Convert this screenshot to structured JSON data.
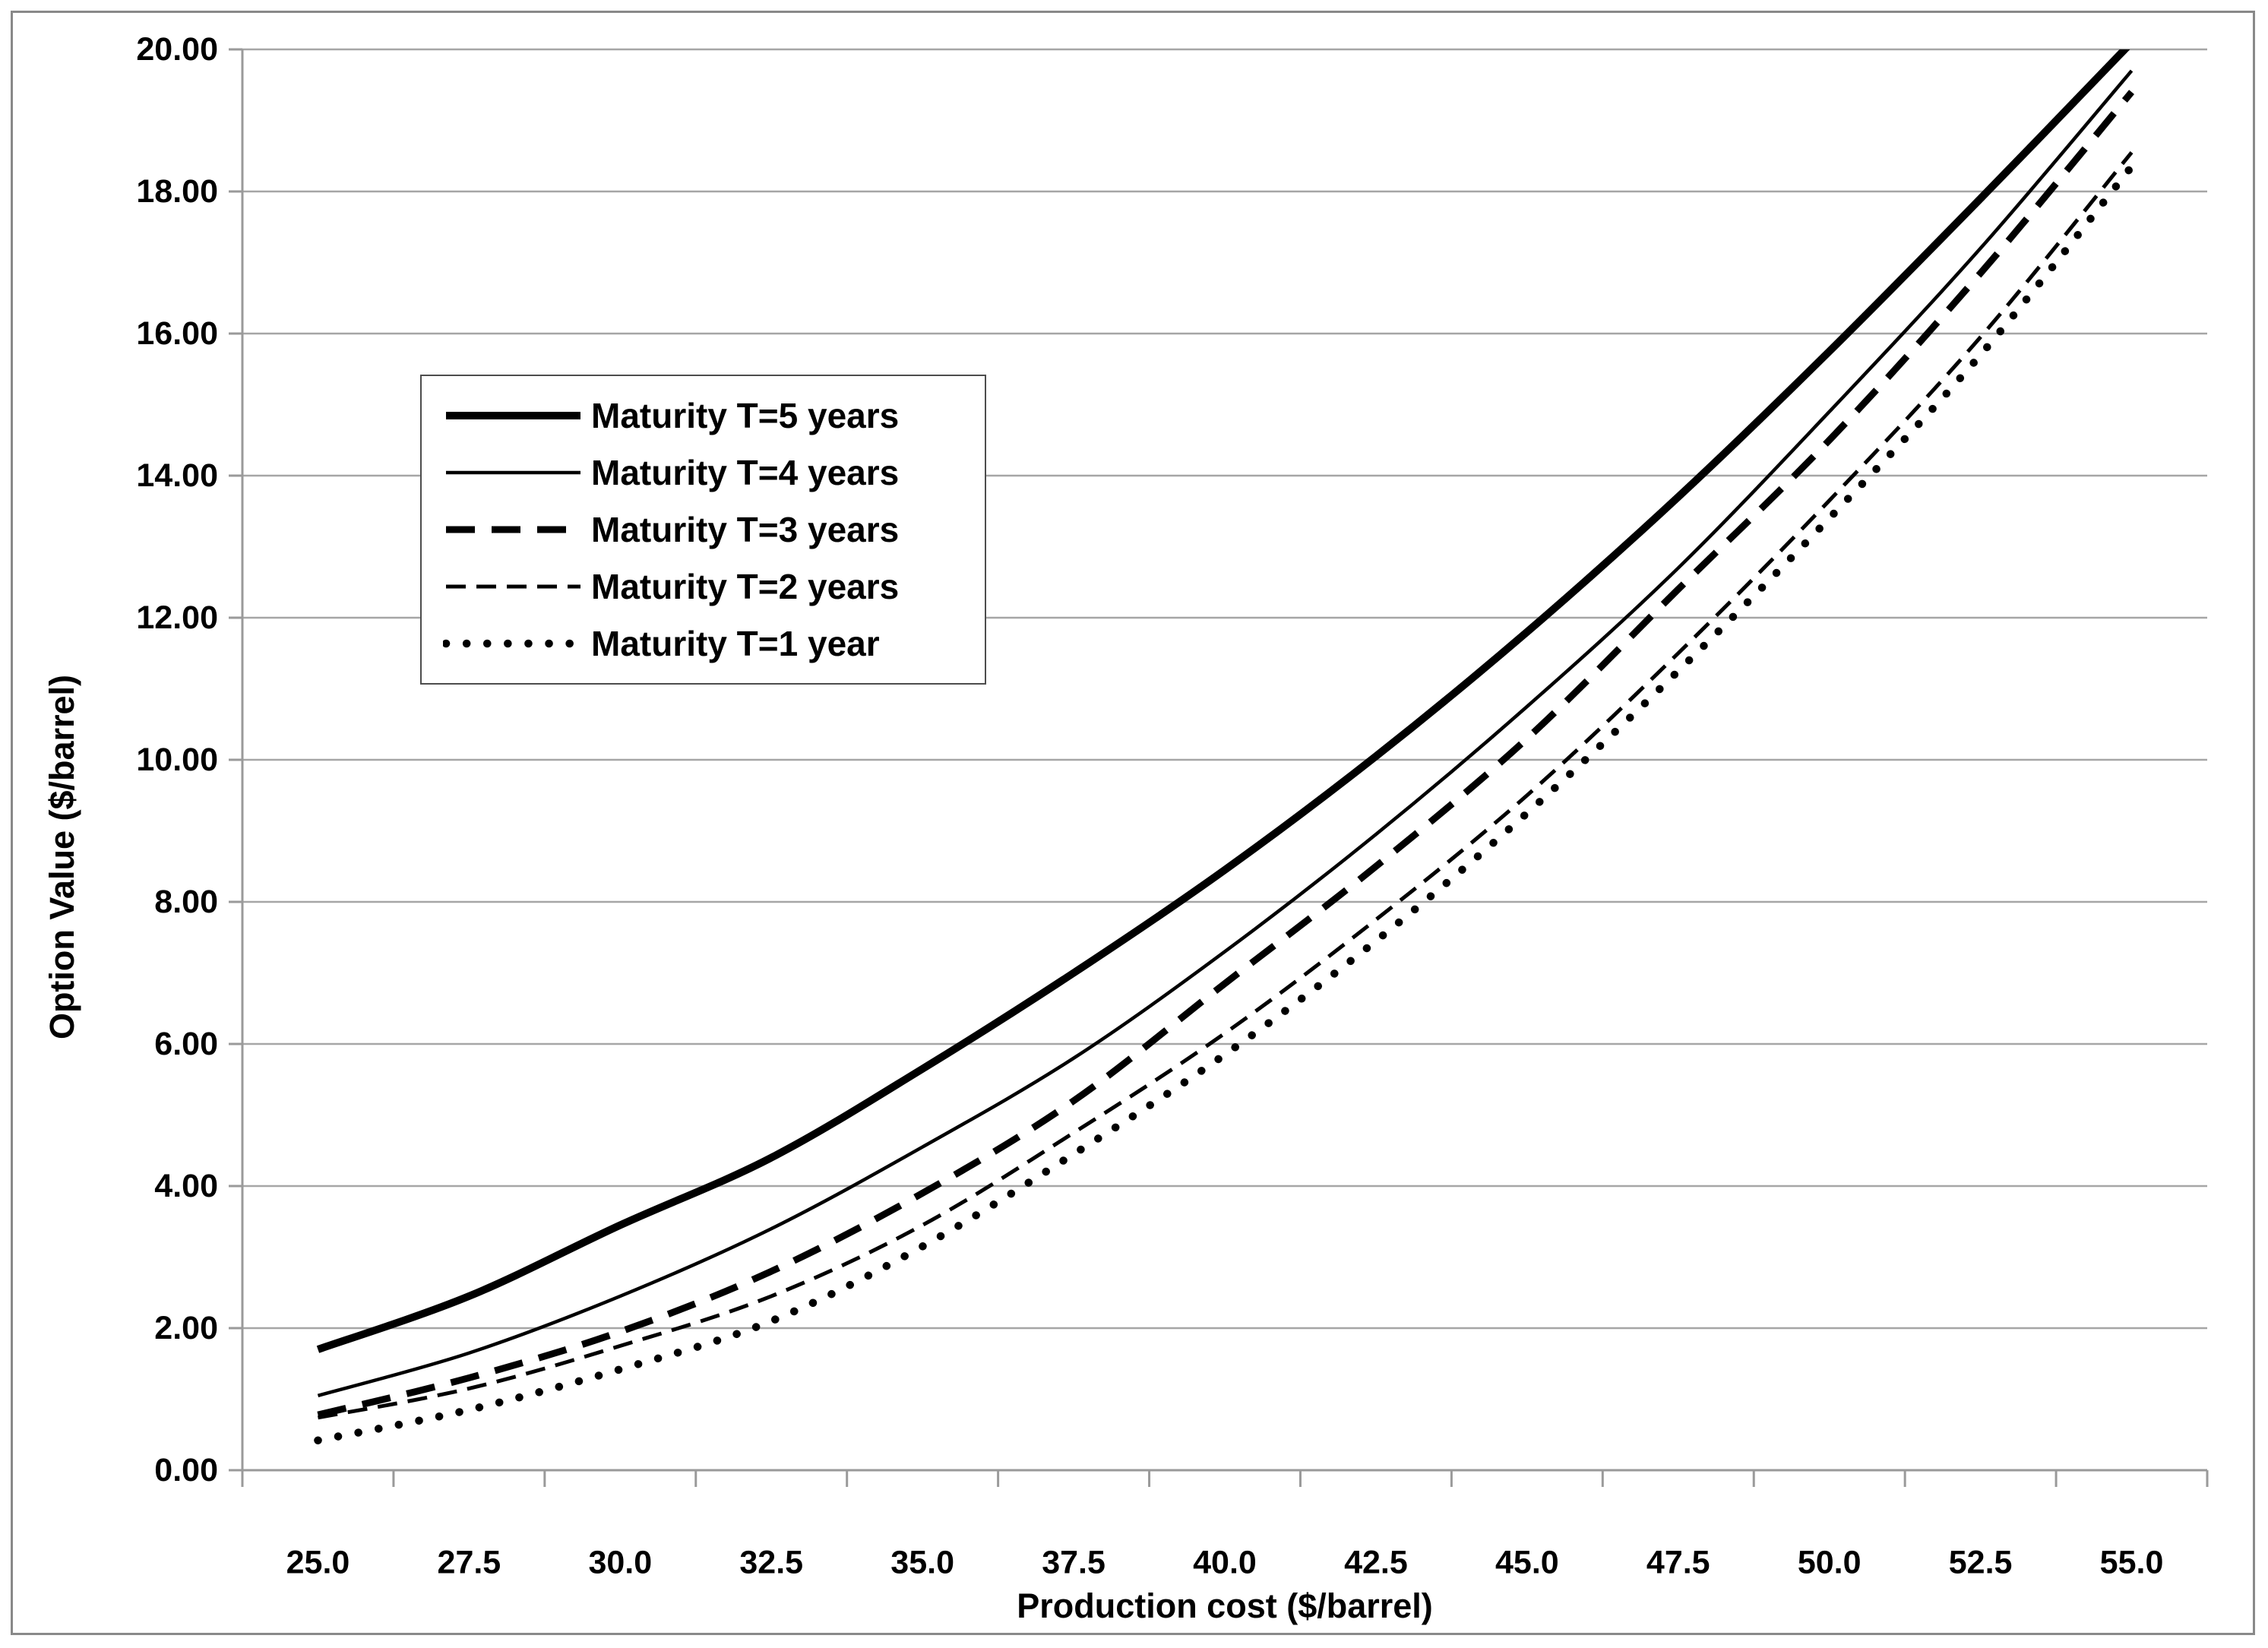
{
  "figure": {
    "background": "#ffffff",
    "border_color": "#898989",
    "line_color": "#000000",
    "gridline_color": "#a6a6a6",
    "axis_line_color": "#9a9a9a"
  },
  "axes": {
    "x_title": "Production cost ($/barrel)",
    "y_title": "Option Value ($/barrel)"
  },
  "chart_data": {
    "type": "line",
    "title": "",
    "xlabel": "Production cost ($/barrel)",
    "ylabel": "Option Value ($/barrel)",
    "x": [
      25.0,
      27.5,
      30.0,
      32.5,
      35.0,
      37.5,
      40.0,
      42.5,
      45.0,
      47.5,
      50.0,
      52.5,
      55.0
    ],
    "x_tick_labels": [
      "25.0",
      "27.5",
      "30.0",
      "32.5",
      "35.0",
      "37.5",
      "40.0",
      "42.5",
      "45.0",
      "47.5",
      "50.0",
      "52.5",
      "55.0"
    ],
    "y_ticks": [
      0,
      2,
      4,
      6,
      8,
      10,
      12,
      14,
      16,
      18,
      20
    ],
    "y_tick_labels": [
      "0.00",
      "2.00",
      "4.00",
      "6.00",
      "8.00",
      "10.00",
      "12.00",
      "14.00",
      "16.00",
      "18.00",
      "20.00"
    ],
    "xlim": [
      25,
      55
    ],
    "ylim": [
      0,
      20
    ],
    "grid": "horizontal",
    "legend_position": "upper-left-inside",
    "series": [
      {
        "name": "Maturity T=5 years",
        "line": "solid-thick",
        "values": [
          1.7,
          2.45,
          3.45,
          4.4,
          5.65,
          7.0,
          8.45,
          10.05,
          11.8,
          13.7,
          15.75,
          17.9,
          20.1
        ]
      },
      {
        "name": "Maturity T=4 years",
        "line": "solid-thin",
        "values": [
          1.05,
          1.65,
          2.45,
          3.4,
          4.55,
          5.8,
          7.3,
          8.95,
          10.75,
          12.7,
          14.9,
          17.2,
          19.7
        ]
      },
      {
        "name": "Maturity T=3 years",
        "line": "dashed-thick",
        "values": [
          0.78,
          1.3,
          1.95,
          2.8,
          3.9,
          5.2,
          6.85,
          8.5,
          10.3,
          12.4,
          14.5,
          16.85,
          19.4
        ]
      },
      {
        "name": "Maturity T=2 years",
        "line": "dashed-thin",
        "values": [
          0.74,
          1.15,
          1.75,
          2.45,
          3.45,
          4.75,
          6.15,
          7.75,
          9.5,
          11.5,
          13.65,
          15.95,
          18.55
        ]
      },
      {
        "name": "Maturity T=1 year",
        "line": "dotted",
        "values": [
          0.42,
          0.85,
          1.42,
          2.1,
          3.15,
          4.45,
          5.85,
          7.45,
          9.25,
          11.25,
          13.4,
          15.7,
          18.35
        ]
      }
    ]
  }
}
